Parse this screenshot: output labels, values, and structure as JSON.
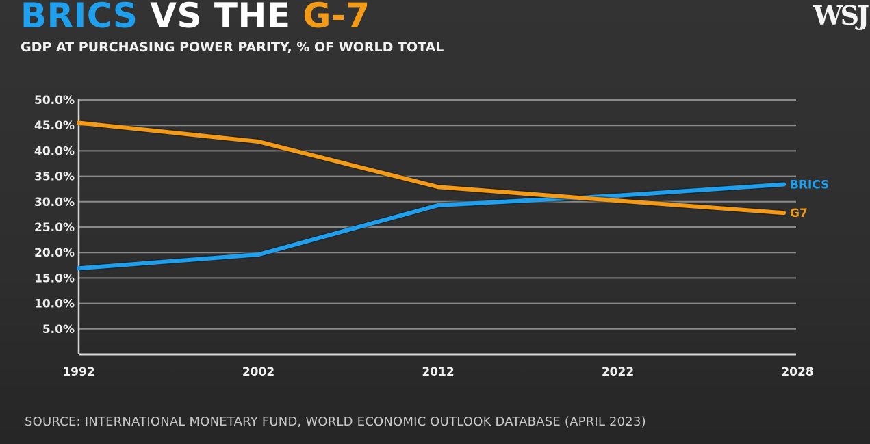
{
  "header": {
    "title_part1": "BRICS",
    "title_part2": " VS THE ",
    "title_part3": "G-7",
    "subtitle": "GDP AT PURCHASING POWER PARITY, % OF WORLD TOTAL",
    "logo": "WSJ"
  },
  "footer": {
    "source": "SOURCE: INTERNATIONAL MONETARY FUND, WORLD ECONOMIC OUTLOOK DATABASE (APRIL 2023)"
  },
  "colors": {
    "brics": "#1ea0ee",
    "g7": "#f39a16",
    "background": "#2e2e2e",
    "grid": "#8a8a8a",
    "axis": "#d8d8d8"
  },
  "chart_data": {
    "type": "line",
    "title": "BRICS VS THE G-7",
    "subtitle": "GDP AT PURCHASING POWER PARITY, % OF WORLD TOTAL",
    "xlabel": "",
    "ylabel": "",
    "x": [
      "1992",
      "2002",
      "2012",
      "2022",
      "2028"
    ],
    "y_ticks": [
      "5.0%",
      "10.0%",
      "15.0%",
      "20.0%",
      "25.0%",
      "30.0%",
      "35.0%",
      "40.0%",
      "45.0%",
      "50.0%"
    ],
    "y_tick_values": [
      5,
      10,
      15,
      20,
      25,
      30,
      35,
      40,
      45,
      50
    ],
    "ylim": [
      0,
      50
    ],
    "grid": true,
    "legend": "end-of-line labels (right)",
    "series": [
      {
        "name": "BRICS",
        "label": "BRICS",
        "values": [
          16.9,
          19.6,
          29.3,
          31.2,
          33.4
        ]
      },
      {
        "name": "G7",
        "label": "G7",
        "values": [
          45.5,
          41.8,
          32.9,
          30.2,
          27.8
        ]
      }
    ],
    "source": "SOURCE: INTERNATIONAL MONETARY FUND, WORLD ECONOMIC OUTLOOK DATABASE (APRIL 2023)"
  }
}
